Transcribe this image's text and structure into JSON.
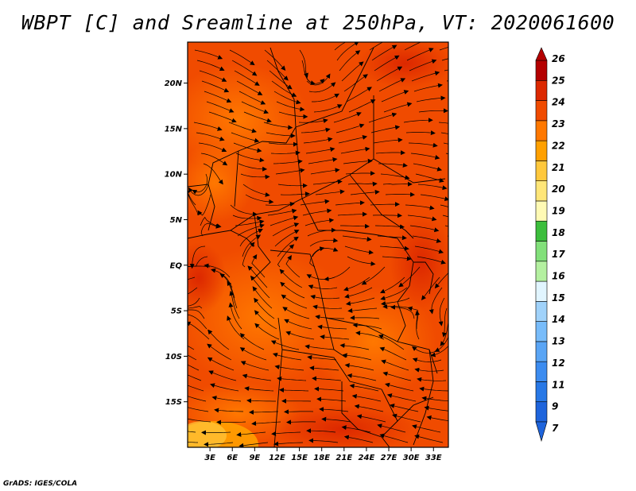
{
  "title": "WBPT [C] and Sreamline at 250hPa, VT: 2020061600",
  "credit": "GrADS: IGES/COLA",
  "map": {
    "lat_ticks": [
      "20N",
      "15N",
      "10N",
      "5N",
      "EQ",
      "5S",
      "10S",
      "15S"
    ],
    "lon_ticks": [
      "3E",
      "6E",
      "9E",
      "12E",
      "15E",
      "18E",
      "21E",
      "24E",
      "27E",
      "30E",
      "33E"
    ],
    "lat_range": [
      -20,
      24.5
    ],
    "lon_range": [
      0,
      35
    ]
  },
  "colorbar": {
    "labels": [
      "7",
      "9",
      "11",
      "12",
      "13",
      "14",
      "15",
      "16",
      "17",
      "18",
      "19",
      "20",
      "21",
      "22",
      "23",
      "24",
      "25",
      "26"
    ],
    "colors": [
      "#1e64dc",
      "#2878e6",
      "#3c8cf0",
      "#5aa5f5",
      "#78bcfa",
      "#a0d2fa",
      "#e1f5ff",
      "#b4f0a0",
      "#82e07a",
      "#3cbe3c",
      "#fffab4",
      "#ffe678",
      "#ffc83c",
      "#ffa000",
      "#ff7800",
      "#f04b00",
      "#dc2800",
      "#b40000"
    ]
  }
}
